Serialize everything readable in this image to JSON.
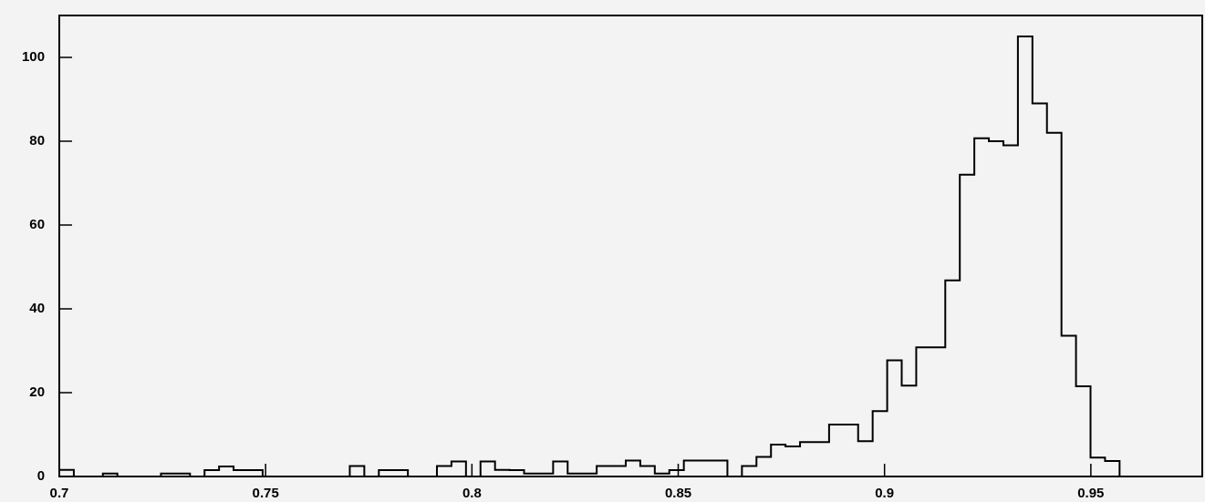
{
  "chart_data": {
    "type": "histogram",
    "bins": [
      0.7,
      0.70352,
      0.70704,
      0.71056,
      0.71408,
      0.7176,
      0.72112,
      0.72464,
      0.72816,
      0.73168,
      0.7352,
      0.73872,
      0.74224,
      0.74576,
      0.74928,
      0.7528,
      0.75632,
      0.75984,
      0.76336,
      0.76688,
      0.7704,
      0.77392,
      0.77744,
      0.78096,
      0.78448,
      0.788,
      0.79152,
      0.79504,
      0.79856,
      0.80208,
      0.8056,
      0.80912,
      0.81264,
      0.81616,
      0.81968,
      0.8232,
      0.82672,
      0.83024,
      0.83376,
      0.83728,
      0.8408,
      0.84432,
      0.84784,
      0.85136,
      0.85488,
      0.8584,
      0.86192,
      0.86544,
      0.86896,
      0.87248,
      0.876,
      0.87952,
      0.88304,
      0.88656,
      0.89008,
      0.8936,
      0.89712,
      0.90064,
      0.90416,
      0.90768,
      0.9112,
      0.91472,
      0.91824,
      0.92176,
      0.92528,
      0.9288,
      0.93232,
      0.93584,
      0.93936,
      0.94288,
      0.9464,
      0.94992,
      0.95344,
      0.95696
    ],
    "values": [
      1.6,
      0,
      0,
      0.7,
      0,
      0,
      0,
      0.7,
      0.7,
      0,
      1.5,
      2.4,
      1.5,
      1.5,
      0,
      0,
      0,
      0,
      0,
      0,
      2.5,
      0,
      1.5,
      1.5,
      0,
      0,
      2.5,
      3.6,
      0,
      3.6,
      1.6,
      1.5,
      0.7,
      0.7,
      3.6,
      0.7,
      0.7,
      2.5,
      2.5,
      3.8,
      2.5,
      0.7,
      1.5,
      3.8,
      3.8,
      3.8,
      0,
      2.5,
      4.7,
      7.6,
      7.2,
      8.2,
      8.2,
      12.4,
      12.4,
      8.4,
      15.6,
      27.7,
      21.7,
      30.8,
      30.8,
      46.8,
      72,
      80.7,
      80,
      79,
      105,
      89,
      82,
      33.6,
      21.5,
      4.5,
      3.7
    ],
    "color": "#000000",
    "xlim": [
      0.7,
      0.977
    ],
    "xticks": [
      0.7,
      0.75,
      0.8,
      0.85,
      0.9,
      0.95
    ],
    "ylim": [
      0,
      110
    ],
    "yticks": [
      0,
      20,
      40,
      60,
      80,
      100
    ]
  }
}
